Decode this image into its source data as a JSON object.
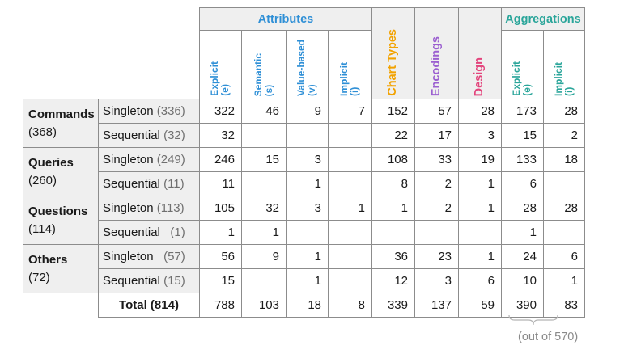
{
  "headers": {
    "attributes": "Attributes",
    "chart_types": "Chart Types",
    "encodings": "Encodings",
    "design": "Design",
    "aggregations": "Aggregations",
    "explicit": "Explicit",
    "explicit_code": "(e)",
    "semantic": "Semantic",
    "semantic_code": "(s)",
    "value_based": "Value-based",
    "value_based_code": "(v)",
    "implicit": "Implicit",
    "implicit_code": "(i)"
  },
  "groups": [
    {
      "name": "Commands",
      "count": "(368)",
      "rows": [
        {
          "label": "Singleton",
          "count": "(336)",
          "values": [
            "322",
            "46",
            "9",
            "7",
            "152",
            "57",
            "28",
            "173",
            "28"
          ]
        },
        {
          "label": "Sequential",
          "count": "(32)",
          "values": [
            "32",
            "",
            "",
            "",
            "22",
            "17",
            "3",
            "15",
            "2"
          ]
        }
      ]
    },
    {
      "name": "Queries",
      "count": "(260)",
      "rows": [
        {
          "label": "Singleton",
          "count": "(249)",
          "values": [
            "246",
            "15",
            "3",
            "",
            "108",
            "33",
            "19",
            "133",
            "18"
          ]
        },
        {
          "label": "Sequential",
          "count": "(11)",
          "values": [
            "11",
            "",
            "1",
            "",
            "8",
            "2",
            "1",
            "6",
            ""
          ]
        }
      ]
    },
    {
      "name": "Questions",
      "count": "(114)",
      "rows": [
        {
          "label": "Singleton",
          "count": "(113)",
          "values": [
            "105",
            "32",
            "3",
            "1",
            "1",
            "2",
            "1",
            "28",
            "28"
          ]
        },
        {
          "label": "Sequential",
          "count": "  (1)",
          "values": [
            "1",
            "1",
            "",
            "",
            "",
            "",
            "",
            "1",
            ""
          ]
        }
      ]
    },
    {
      "name": "Others",
      "count": "(72)",
      "rows": [
        {
          "label": "Singleton",
          "count": "  (57)",
          "values": [
            "56",
            "9",
            "1",
            "",
            "36",
            "23",
            "1",
            "24",
            "6"
          ]
        },
        {
          "label": "Sequential",
          "count": "(15)",
          "values": [
            "15",
            "",
            "1",
            "",
            "12",
            "3",
            "6",
            "10",
            "1"
          ]
        }
      ]
    }
  ],
  "total": {
    "label": "Total (814)",
    "values": [
      "788",
      "103",
      "18",
      "8",
      "339",
      "137",
      "59",
      "390",
      "83"
    ]
  },
  "note": "(out of 570)"
}
